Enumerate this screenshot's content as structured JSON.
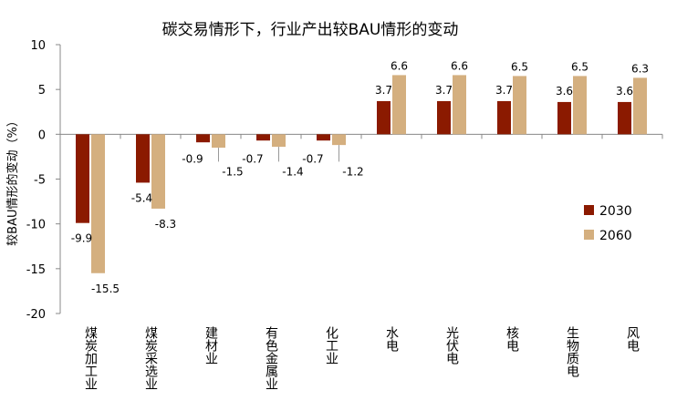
{
  "chart_data": {
    "type": "bar",
    "title": "碳交易情形下，行业产出较BAU情形的变动",
    "ylabel": "较BAU情形的变动（%）",
    "xlabel": "",
    "ylim": [
      -20,
      10
    ],
    "yticks": [
      10,
      5,
      0,
      -5,
      -10,
      -15,
      -20
    ],
    "categories": [
      "煤炭加工业",
      "煤炭采选业",
      "建材业",
      "有色金属业",
      "化工业",
      "水电",
      "光伏电",
      "核电",
      "生物质电",
      "风电"
    ],
    "series": [
      {
        "name": "2030",
        "color": "#8B1A00",
        "values": [
          -9.9,
          -5.4,
          -0.9,
          -0.7,
          -0.7,
          3.7,
          3.7,
          3.7,
          3.6,
          3.6
        ]
      },
      {
        "name": "2060",
        "color": "#D4AF7F",
        "values": [
          -15.5,
          -8.3,
          -1.5,
          -1.4,
          -1.2,
          6.6,
          6.6,
          6.5,
          6.5,
          6.3
        ]
      }
    ],
    "legend": "right",
    "grid": false
  }
}
